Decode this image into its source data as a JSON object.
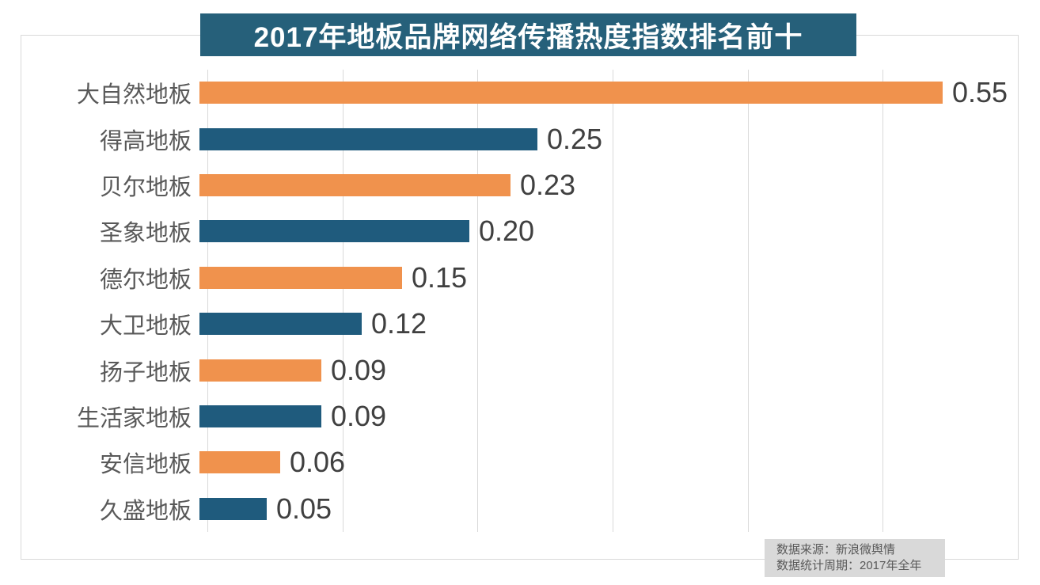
{
  "title": {
    "text": "2017年地板品牌网络传播热度指数排名前十",
    "bg_color": "#26607A",
    "text_color": "#FFFFFF"
  },
  "source_note": {
    "line1": "数据来源：新浪微舆情",
    "line2": "数据统计周期：2017年全年",
    "bg_color": "#D9D9D9",
    "text_color": "#595959"
  },
  "chart_data": {
    "type": "bar",
    "orientation": "horizontal",
    "title": "2017年地板品牌网络传播热度指数排名前十",
    "categories": [
      "大自然地板",
      "得高地板",
      "贝尔地板",
      "圣象地板",
      "德尔地板",
      "大卫地板",
      "扬子地板",
      "生活家地板",
      "安信地板",
      "久盛地板"
    ],
    "values": [
      0.55,
      0.25,
      0.23,
      0.2,
      0.15,
      0.12,
      0.09,
      0.09,
      0.06,
      0.05
    ],
    "value_labels": [
      "0.55",
      "0.25",
      "0.23",
      "0.20",
      "0.15",
      "0.12",
      "0.09",
      "0.09",
      "0.06",
      "0.05"
    ],
    "xlabel": "",
    "ylabel": "",
    "xlim": [
      0,
      0.6
    ],
    "gridline_interval": 0.1,
    "grid": true,
    "legend": false,
    "bar_colors_alternating": [
      "#F0924D",
      "#1F5B7D"
    ],
    "category_label_color": "#595959",
    "value_label_color": "#404040",
    "gridline_color": "#D9D9D9",
    "frame_color": "#D9D9D9"
  }
}
